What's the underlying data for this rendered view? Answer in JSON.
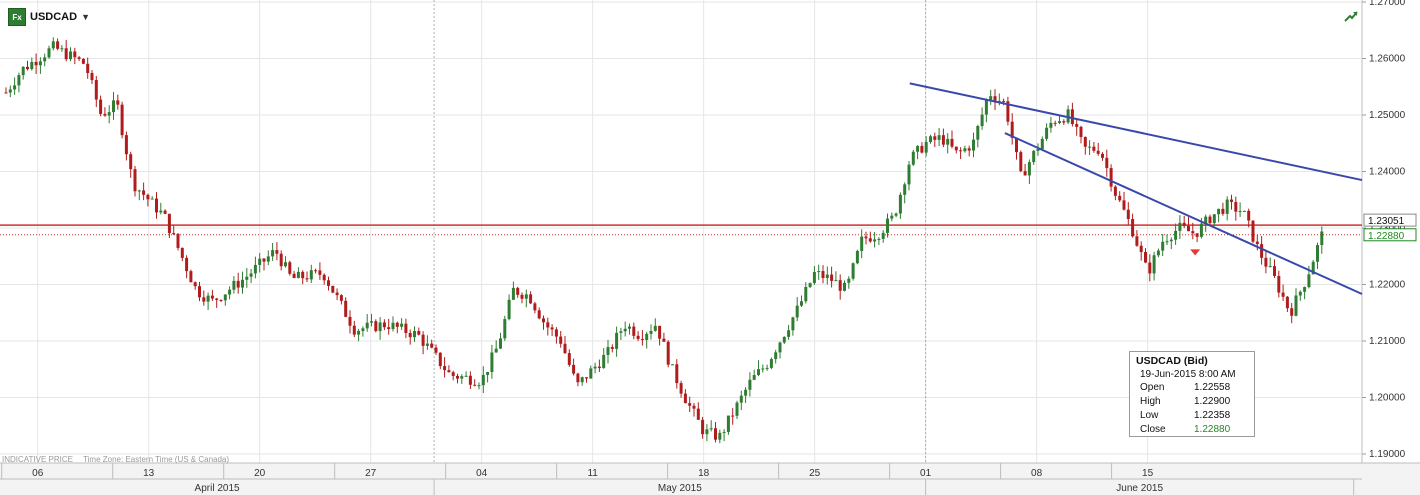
{
  "header": {
    "symbol": "USDCAD",
    "symbol_icon": "fx-icon",
    "dropdown_icon": "caret-down-icon",
    "trend_icon": "trend-up-icon"
  },
  "footer": {
    "indicative": "INDICATIVE PRICE",
    "timezone": "Time Zone: Eastern Time (US & Canada)"
  },
  "tooltip": {
    "title": "USDCAD (Bid)",
    "datetime": "19-Jun-2015 8:00 AM",
    "open_label": "Open",
    "open": "1.22558",
    "high_label": "High",
    "high": "1.22900",
    "low_label": "Low",
    "low": "1.22358",
    "close_label": "Close",
    "close": "1.22880"
  },
  "colors": {
    "up_candle": "#2e7d32",
    "down_candle": "#b01c1c",
    "trendline": "#3949ab",
    "hline": "#d32f2f",
    "grid": "#e6e6e6",
    "close_green": "#1f8a1f"
  },
  "chart_data": {
    "type": "candlestick",
    "instrument": "USDCAD",
    "timeframe_note": "hourly-style candles, Apr 2015 - Jun 2015",
    "ylim": [
      1.19,
      1.27
    ],
    "y_ticks": [
      "1.27000",
      "1.26000",
      "1.25000",
      "1.24000",
      "1.23000",
      "1.22000",
      "1.21000",
      "1.20000",
      "1.19000"
    ],
    "x_day_ticks": [
      "06",
      "13",
      "20",
      "27",
      "04",
      "11",
      "18",
      "25",
      "01",
      "08",
      "15"
    ],
    "x_month_labels": [
      "April 2015",
      "May 2015",
      "June 2015"
    ],
    "price_tags": [
      {
        "label": "1.23051",
        "value": 1.23051,
        "style": "box"
      },
      {
        "label": "1.22880",
        "value": 1.2288,
        "style": "green-box"
      }
    ],
    "horizontal_lines": [
      {
        "value": 1.23051,
        "style": "solid"
      },
      {
        "value": 1.2288,
        "style": "dotted"
      }
    ],
    "trendlines": [
      {
        "from": [
          "2015-05-31",
          1.2556
        ],
        "to": [
          "2015-06-23",
          1.2418
        ]
      },
      {
        "from": [
          "2015-06-06",
          1.2468
        ],
        "to": [
          "2015-06-23",
          1.2253
        ]
      }
    ],
    "marker": {
      "date": "2015-06-18",
      "value": 1.2255,
      "shape": "down-triangle"
    },
    "series": [
      {
        "name": "USDCAD",
        "key_points": [
          [
            "2015-04-04",
            1.254
          ],
          [
            "2015-04-05",
            1.258
          ],
          [
            "2015-04-07",
            1.262
          ],
          [
            "2015-04-09",
            1.259
          ],
          [
            "2015-04-10",
            1.25
          ],
          [
            "2015-04-11",
            1.252
          ],
          [
            "2015-04-12",
            1.238
          ],
          [
            "2015-04-14",
            1.232
          ],
          [
            "2015-04-16",
            1.219
          ],
          [
            "2015-04-17",
            1.217
          ],
          [
            "2015-04-19",
            1.221
          ],
          [
            "2015-04-21",
            1.226
          ],
          [
            "2015-04-22",
            1.221
          ],
          [
            "2015-04-24",
            1.222
          ],
          [
            "2015-04-26",
            1.212
          ],
          [
            "2015-04-28",
            1.213
          ],
          [
            "2015-04-30",
            1.211
          ],
          [
            "2015-05-02",
            1.204
          ],
          [
            "2015-05-04",
            1.203
          ],
          [
            "2015-05-05",
            1.209
          ],
          [
            "2015-05-06",
            1.219
          ],
          [
            "2015-05-07",
            1.218
          ],
          [
            "2015-05-08",
            1.213
          ],
          [
            "2015-05-09",
            1.21
          ],
          [
            "2015-05-10",
            1.202
          ],
          [
            "2015-05-12",
            1.208
          ],
          [
            "2015-05-13",
            1.213
          ],
          [
            "2015-05-14",
            1.211
          ],
          [
            "2015-05-15",
            1.213
          ],
          [
            "2015-05-16",
            1.205
          ],
          [
            "2015-05-17",
            1.199
          ],
          [
            "2015-05-18",
            1.194
          ],
          [
            "2015-05-19",
            1.193
          ],
          [
            "2015-05-20",
            1.198
          ],
          [
            "2015-05-21",
            1.203
          ],
          [
            "2015-05-22",
            1.206
          ],
          [
            "2015-05-24",
            1.216
          ],
          [
            "2015-05-25",
            1.222
          ],
          [
            "2015-05-26",
            1.221
          ],
          [
            "2015-05-27",
            1.219
          ],
          [
            "2015-05-28",
            1.228
          ],
          [
            "2015-05-29",
            1.229
          ],
          [
            "2015-05-30",
            1.232
          ],
          [
            "2015-05-31",
            1.242
          ],
          [
            "2015-06-01",
            1.245
          ],
          [
            "2015-06-02",
            1.246
          ],
          [
            "2015-06-03",
            1.243
          ],
          [
            "2015-06-04",
            1.245
          ],
          [
            "2015-06-05",
            1.254
          ],
          [
            "2015-06-06",
            1.252
          ],
          [
            "2015-06-07",
            1.239
          ],
          [
            "2015-06-08",
            1.244
          ],
          [
            "2015-06-09",
            1.249
          ],
          [
            "2015-06-10",
            1.25
          ],
          [
            "2015-06-11",
            1.244
          ],
          [
            "2015-06-12",
            1.244
          ],
          [
            "2015-06-13",
            1.236
          ],
          [
            "2015-06-14",
            1.23
          ],
          [
            "2015-06-15",
            1.222
          ],
          [
            "2015-06-16",
            1.228
          ],
          [
            "2015-06-17",
            1.23
          ],
          [
            "2015-06-18",
            1.229
          ],
          [
            "2015-06-19",
            1.232
          ],
          [
            "2015-06-20",
            1.234
          ],
          [
            "2015-06-21",
            1.233
          ],
          [
            "2015-06-22",
            1.226
          ],
          [
            "2015-06-23",
            1.221
          ],
          [
            "2015-06-24",
            1.215
          ],
          [
            "2015-06-25",
            1.221
          ],
          [
            "2015-06-26",
            1.2288
          ]
        ]
      }
    ]
  }
}
